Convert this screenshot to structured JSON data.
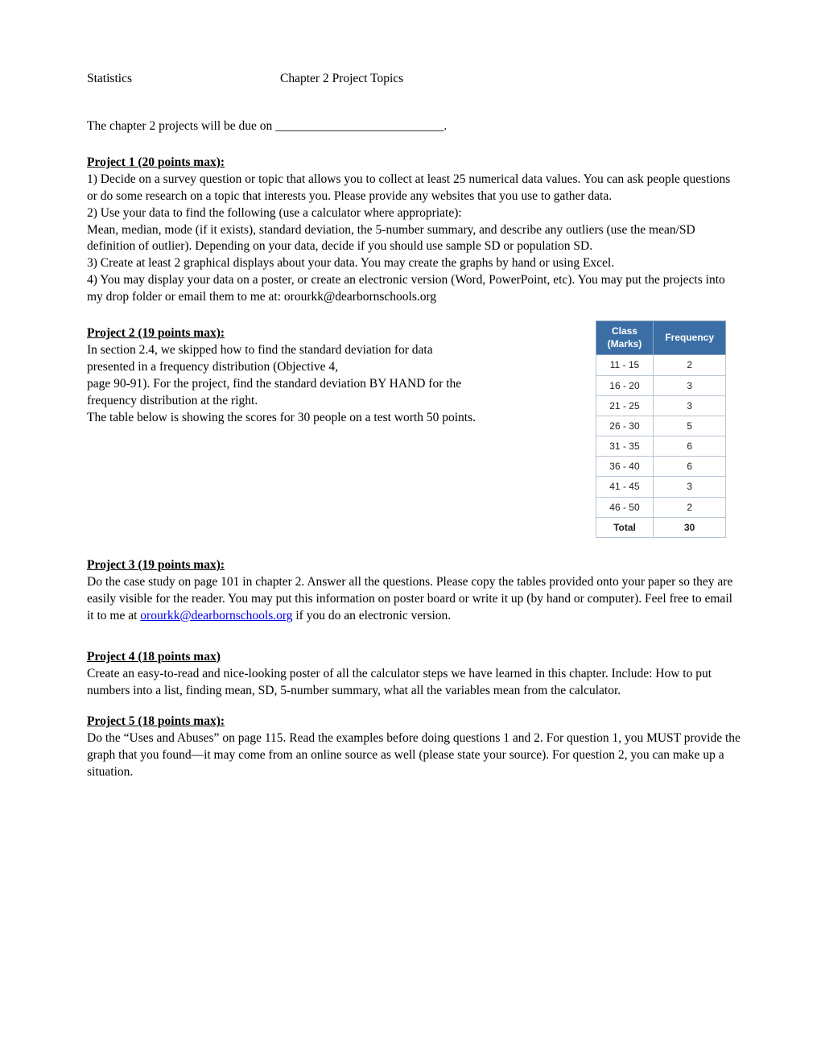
{
  "header": {
    "left": "Statistics",
    "center": "Chapter 2 Project Topics"
  },
  "due_line": "The chapter 2 projects will be due on ___________________________.",
  "project1": {
    "heading": "Project 1 (20 points max):",
    "p1": "1) Decide on a survey question or topic that allows you to collect at least 25 numerical data values.  You can ask people questions or do some research on a topic that interests you.   Please provide any websites that you use to gather data.",
    "p2": "2) Use your data to find the following (use a calculator where appropriate):",
    "p3": "Mean, median, mode (if it exists), standard deviation, the 5-number summary, and describe any outliers (use the mean/SD definition of outlier).  Depending on your data, decide if you should use sample SD or population SD.",
    "p4": "3)  Create at least 2 graphical displays about your data.  You may create the graphs by hand or using Excel.",
    "p5": "4) You may display your data on a poster, or create an electronic version (Word, PowerPoint, etc).  You may put the projects into my drop folder or email them to me at: orourkk@dearbornschools.org"
  },
  "project2": {
    "heading": "Project 2 (19 points max):",
    "p1": "In section 2.4, we skipped how to find the standard deviation for data presented in a frequency distribution (Objective 4,",
    "p2": "page 90-91).  For the project, find the standard deviation BY HAND for the frequency distribution at the right.",
    "p3": "The table below is showing the scores for 30 people on a test  worth 50 points."
  },
  "freq_table": {
    "header_col1_line1": "Class",
    "header_col1_line2": "(Marks)",
    "header_col2": "Frequency",
    "rows": [
      {
        "class": "11 - 15",
        "freq": "2"
      },
      {
        "class": "16 - 20",
        "freq": "3"
      },
      {
        "class": "21 - 25",
        "freq": "3"
      },
      {
        "class": "26 - 30",
        "freq": "5"
      },
      {
        "class": "31 - 35",
        "freq": "6"
      },
      {
        "class": "36 - 40",
        "freq": "6"
      },
      {
        "class": "41 - 45",
        "freq": "3"
      },
      {
        "class": "46 - 50",
        "freq": "2"
      }
    ],
    "total_label": "Total",
    "total_value": "30",
    "header_bg": "#3b6ea5",
    "header_fg": "#ffffff",
    "border_color": "#b7c5d3"
  },
  "project3": {
    "heading": "Project 3 (19 points max):",
    "body_before": "Do the case study on page 101 in chapter 2.  Answer all the questions.  Please copy the tables provided onto your paper so they are easily visible for the reader.  You may put this information on poster board or write it up (by hand or computer).  Feel free to email it to me at ",
    "email": "orourkk@dearbornschools.org",
    "body_after": " if you do an electronic version."
  },
  "project4": {
    "heading": "Project 4 (18 points max)",
    "body": "Create an easy-to-read and nice-looking poster of all the calculator steps we have learned in this chapter.  Include:  How to put numbers into a list, finding mean, SD, 5-number summary, what all the variables mean from the calculator."
  },
  "project5": {
    "heading": "Project 5 (18 points max):",
    "body": "Do the “Uses and Abuses” on page 115.  Read the examples before doing questions 1 and 2.  For question 1, you MUST provide the graph that you found—it may come from an online source as well (please state your source).  For question 2, you can make up a situation."
  }
}
